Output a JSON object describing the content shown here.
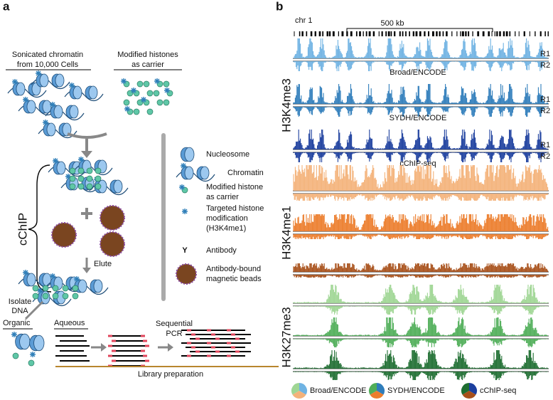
{
  "panel_a": {
    "label": "a",
    "input_chromatin": [
      "Sonicated chromatin",
      "from 10,000 Cells"
    ],
    "input_carrier": [
      "Modified histones",
      "as carrier"
    ],
    "cchip": "cChIP",
    "elute": "Elute",
    "isolate": [
      "Isolate",
      "DNA"
    ],
    "organic": "Organic",
    "aqueous": "Aqueous",
    "pcr": [
      "Sequential",
      "PCR"
    ],
    "library": "Library preparation",
    "legend": [
      [
        "Nucleosome"
      ],
      [
        "Chromatin"
      ],
      [
        "Modified histone",
        "as carrier"
      ],
      [
        "Targeted histone",
        "modification",
        "(H3K4me1)"
      ],
      [
        "Antibody"
      ],
      [
        "Antibody-bound",
        "magnetic beads"
      ]
    ]
  },
  "panel_b": {
    "label": "b",
    "chrom": "chr 1",
    "scale": "500 kb",
    "marks": [
      "H3K4me3",
      "H3K4me1",
      "H3K27me3"
    ],
    "replicates": [
      "R1",
      "R2"
    ],
    "sources": [
      "Broad/ENCODE",
      "SYDH/ENCODE",
      "cChIP-seq"
    ]
  }
}
